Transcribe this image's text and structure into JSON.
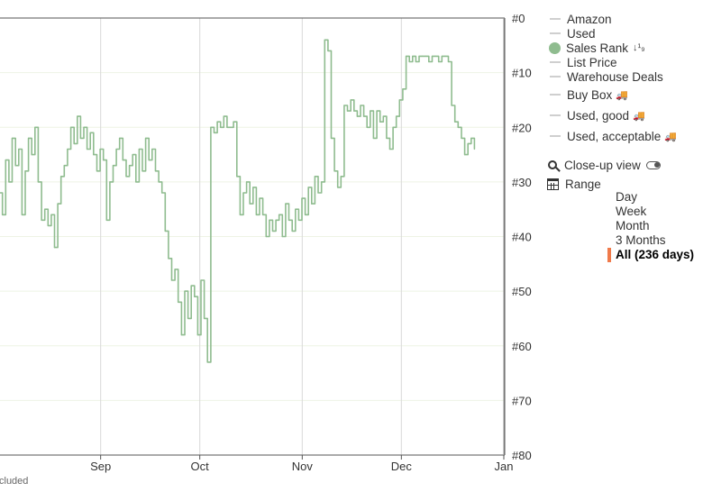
{
  "chart_data": {
    "type": "line",
    "title": "",
    "xlabel": "",
    "ylabel": "",
    "y_axis_inverted": true,
    "y_axis_side": "right",
    "ylim": [
      0,
      80
    ],
    "y_ticks": [
      "#0",
      "#10",
      "#20",
      "#30",
      "#40",
      "#50",
      "#60",
      "#70",
      "#80"
    ],
    "x_ticks": [
      {
        "label": "Sep",
        "day": 31
      },
      {
        "label": "Oct",
        "day": 61
      },
      {
        "label": "Nov",
        "day": 92
      },
      {
        "label": "Dec",
        "day": 122
      },
      {
        "label": "Jan",
        "day": 153
      }
    ],
    "grid": true,
    "series": [
      {
        "name": "Sales Rank",
        "color": "#8fbc8f",
        "step": true,
        "x_unit": "days from chart left edge",
        "points": [
          [
            0,
            32
          ],
          [
            1,
            36
          ],
          [
            2,
            26
          ],
          [
            3,
            30
          ],
          [
            4,
            22
          ],
          [
            5,
            27
          ],
          [
            6,
            24
          ],
          [
            7,
            36
          ],
          [
            8,
            28
          ],
          [
            9,
            22
          ],
          [
            10,
            25
          ],
          [
            11,
            20
          ],
          [
            12,
            30
          ],
          [
            13,
            37
          ],
          [
            14,
            35
          ],
          [
            15,
            38
          ],
          [
            16,
            36
          ],
          [
            17,
            42
          ],
          [
            18,
            34
          ],
          [
            19,
            29
          ],
          [
            20,
            27
          ],
          [
            21,
            24
          ],
          [
            22,
            20
          ],
          [
            23,
            23
          ],
          [
            24,
            18
          ],
          [
            25,
            22
          ],
          [
            26,
            20
          ],
          [
            27,
            24
          ],
          [
            28,
            21
          ],
          [
            29,
            25
          ],
          [
            30,
            28
          ],
          [
            31,
            24
          ],
          [
            32,
            26
          ],
          [
            33,
            37
          ],
          [
            34,
            30
          ],
          [
            35,
            27
          ],
          [
            36,
            24
          ],
          [
            37,
            22
          ],
          [
            38,
            26
          ],
          [
            39,
            29
          ],
          [
            40,
            27
          ],
          [
            41,
            25
          ],
          [
            42,
            30
          ],
          [
            43,
            24
          ],
          [
            44,
            28
          ],
          [
            45,
            22
          ],
          [
            46,
            26
          ],
          [
            47,
            24
          ],
          [
            48,
            28
          ],
          [
            49,
            30
          ],
          [
            50,
            32
          ],
          [
            51,
            39
          ],
          [
            52,
            44
          ],
          [
            53,
            48
          ],
          [
            54,
            46
          ],
          [
            55,
            52
          ],
          [
            56,
            58
          ],
          [
            57,
            50
          ],
          [
            58,
            55
          ],
          [
            59,
            49
          ],
          [
            60,
            51
          ],
          [
            61,
            58
          ],
          [
            62,
            48
          ],
          [
            63,
            55
          ],
          [
            64,
            63
          ],
          [
            65,
            20
          ],
          [
            66,
            21
          ],
          [
            67,
            19
          ],
          [
            68,
            20
          ],
          [
            69,
            18
          ],
          [
            70,
            20
          ],
          [
            71,
            20
          ],
          [
            72,
            19
          ],
          [
            73,
            29
          ],
          [
            74,
            36
          ],
          [
            75,
            32
          ],
          [
            76,
            30
          ],
          [
            77,
            34
          ],
          [
            78,
            31
          ],
          [
            79,
            36
          ],
          [
            80,
            33
          ],
          [
            81,
            36
          ],
          [
            82,
            40
          ],
          [
            83,
            37
          ],
          [
            84,
            39
          ],
          [
            85,
            37
          ],
          [
            86,
            36
          ],
          [
            87,
            40
          ],
          [
            88,
            34
          ],
          [
            89,
            37
          ],
          [
            90,
            39
          ],
          [
            91,
            35
          ],
          [
            92,
            37
          ],
          [
            93,
            33
          ],
          [
            94,
            36
          ],
          [
            95,
            31
          ],
          [
            96,
            34
          ],
          [
            97,
            29
          ],
          [
            98,
            32
          ],
          [
            99,
            30
          ],
          [
            100,
            4
          ],
          [
            101,
            6
          ],
          [
            102,
            22
          ],
          [
            103,
            28
          ],
          [
            104,
            31
          ],
          [
            105,
            29
          ],
          [
            106,
            16
          ],
          [
            107,
            17
          ],
          [
            108,
            15
          ],
          [
            109,
            17
          ],
          [
            110,
            18
          ],
          [
            111,
            16
          ],
          [
            112,
            18
          ],
          [
            113,
            20
          ],
          [
            114,
            17
          ],
          [
            115,
            22
          ],
          [
            116,
            17
          ],
          [
            117,
            19
          ],
          [
            118,
            18
          ],
          [
            119,
            22
          ],
          [
            120,
            24
          ],
          [
            121,
            20
          ],
          [
            122,
            18
          ],
          [
            123,
            15
          ],
          [
            124,
            13
          ],
          [
            125,
            7
          ],
          [
            126,
            8
          ],
          [
            127,
            7
          ],
          [
            128,
            8
          ],
          [
            129,
            7
          ],
          [
            130,
            7
          ],
          [
            131,
            7
          ],
          [
            132,
            8
          ],
          [
            133,
            7
          ],
          [
            134,
            7
          ],
          [
            135,
            8
          ],
          [
            136,
            7
          ],
          [
            137,
            7
          ],
          [
            138,
            8
          ],
          [
            139,
            16
          ],
          [
            140,
            19
          ],
          [
            141,
            20
          ],
          [
            142,
            22
          ],
          [
            143,
            25
          ],
          [
            144,
            23
          ],
          [
            145,
            22
          ],
          [
            146,
            24
          ]
        ]
      }
    ]
  },
  "legend": {
    "items": [
      {
        "label": "Amazon",
        "marker": "dash"
      },
      {
        "label": "Used",
        "marker": "dash"
      },
      {
        "label": "Sales Rank",
        "marker": "dot",
        "icon": "sort-numeric-icon",
        "icon_text": "↓¹₉"
      },
      {
        "label": "List Price",
        "marker": "dash"
      },
      {
        "label": "Warehouse Deals",
        "marker": "dash"
      },
      {
        "label": "Buy Box",
        "marker": "dash",
        "icon": "truck-icon"
      },
      {
        "label": "Used, good",
        "marker": "dash",
        "icon": "truck-icon"
      },
      {
        "label": "Used, acceptable",
        "marker": "dash",
        "icon": "truck-icon"
      }
    ]
  },
  "controls": {
    "closeup_label": "Close-up view",
    "range_label": "Range",
    "range_options": [
      "Day",
      "Week",
      "Month",
      "3 Months",
      "All (236 days)"
    ],
    "range_selected_index": 4
  },
  "footnote": "cluded",
  "icons": {
    "truck": "🚚"
  }
}
